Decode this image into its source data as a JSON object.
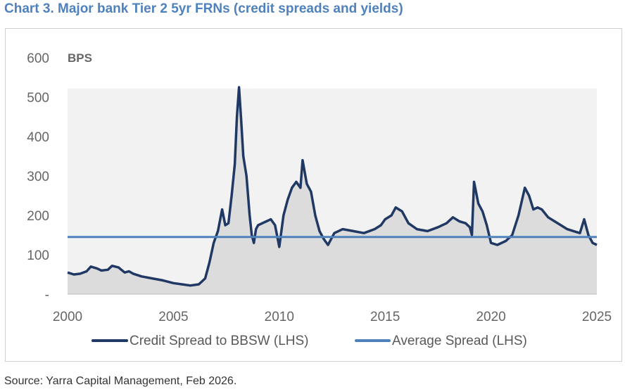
{
  "title": "Chart 3. Major bank Tier 2 5yr FRNs (credit spreads and yields)",
  "source": "Source: Yarra Capital Management, Feb 2026.",
  "chart_data": {
    "type": "area",
    "unit_label": "BPS",
    "xlim": [
      2000,
      2025
    ],
    "ylim": [
      0,
      600
    ],
    "x_ticks": [
      2000,
      2005,
      2010,
      2015,
      2020,
      2025
    ],
    "y_ticks": [
      {
        "value": 0,
        "label": "-"
      },
      {
        "value": 100,
        "label": "100"
      },
      {
        "value": 200,
        "label": "200"
      },
      {
        "value": 300,
        "label": "300"
      },
      {
        "value": 400,
        "label": "400"
      },
      {
        "value": 500,
        "label": "500"
      },
      {
        "value": 600,
        "label": "600"
      }
    ],
    "series": [
      {
        "name": "Credit Spread to BBSW (LHS)",
        "color": "#1f3864",
        "x": [
          2000.0,
          2000.3,
          2000.6,
          2000.9,
          2001.1,
          2001.4,
          2001.6,
          2001.9,
          2002.1,
          2002.4,
          2002.7,
          2002.9,
          2003.1,
          2003.5,
          2004.0,
          2004.5,
          2005.0,
          2005.4,
          2005.8,
          2006.2,
          2006.5,
          2006.7,
          2006.9,
          2007.1,
          2007.3,
          2007.45,
          2007.6,
          2007.75,
          2007.9,
          2008.0,
          2008.1,
          2008.2,
          2008.3,
          2008.45,
          2008.6,
          2008.7,
          2008.8,
          2008.9,
          2009.0,
          2009.2,
          2009.4,
          2009.6,
          2009.8,
          2010.0,
          2010.2,
          2010.4,
          2010.6,
          2010.8,
          2011.0,
          2011.1,
          2011.3,
          2011.5,
          2011.7,
          2011.9,
          2012.1,
          2012.3,
          2012.6,
          2013.0,
          2013.5,
          2014.0,
          2014.5,
          2014.8,
          2015.0,
          2015.3,
          2015.5,
          2015.8,
          2016.1,
          2016.5,
          2017.0,
          2017.5,
          2017.9,
          2018.2,
          2018.5,
          2018.8,
          2019.0,
          2019.1,
          2019.2,
          2019.4,
          2019.6,
          2019.8,
          2020.0,
          2020.3,
          2020.7,
          2021.0,
          2021.3,
          2021.6,
          2021.8,
          2022.0,
          2022.2,
          2022.4,
          2022.7,
          2023.0,
          2023.3,
          2023.6,
          2023.9,
          2024.2,
          2024.4,
          2024.6,
          2024.8,
          2025.0
        ],
        "values": [
          55,
          50,
          52,
          58,
          70,
          65,
          60,
          62,
          72,
          68,
          55,
          58,
          52,
          45,
          40,
          35,
          28,
          25,
          22,
          25,
          40,
          80,
          130,
          160,
          215,
          175,
          180,
          250,
          330,
          450,
          525,
          440,
          350,
          300,
          200,
          150,
          130,
          165,
          175,
          180,
          185,
          190,
          175,
          120,
          200,
          240,
          270,
          285,
          270,
          340,
          280,
          260,
          200,
          160,
          140,
          125,
          155,
          165,
          160,
          155,
          165,
          175,
          190,
          200,
          220,
          210,
          180,
          165,
          160,
          170,
          180,
          195,
          185,
          180,
          170,
          150,
          285,
          230,
          210,
          175,
          130,
          125,
          135,
          150,
          200,
          270,
          250,
          215,
          220,
          215,
          195,
          185,
          175,
          165,
          160,
          155,
          190,
          150,
          130,
          125
        ]
      },
      {
        "name": "Average Spread (LHS)",
        "color": "#4f81bd",
        "x": [
          2000,
          2025
        ],
        "values": [
          145,
          145
        ]
      }
    ]
  }
}
